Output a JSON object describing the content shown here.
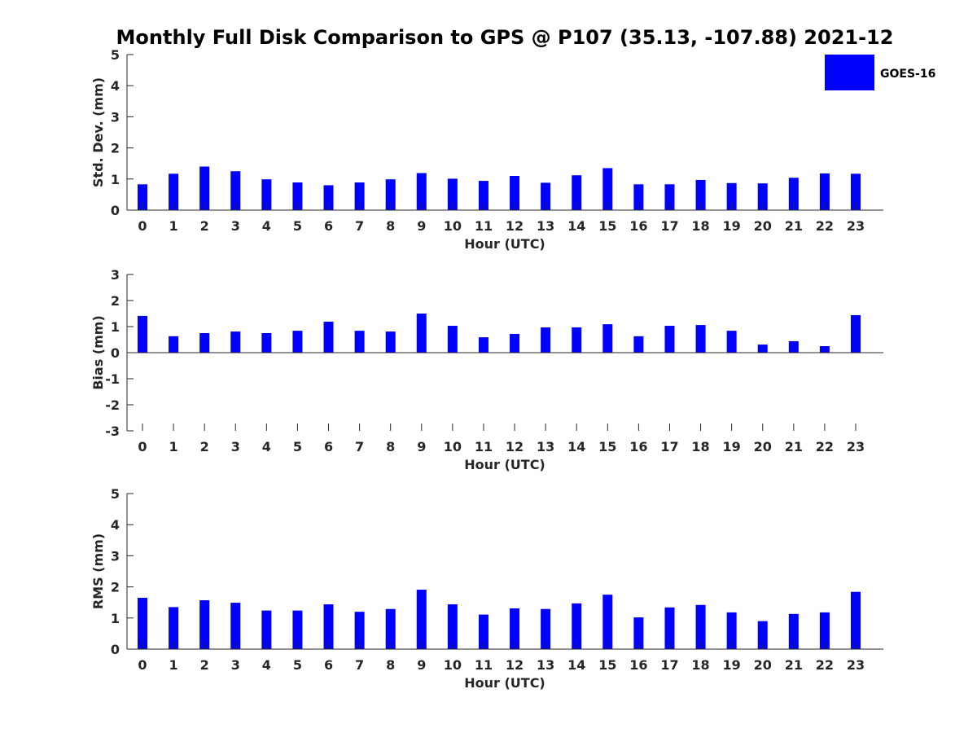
{
  "title": "Monthly Full Disk Comparison to GPS @ P107 (35.13, -107.88) 2021-12",
  "legend": {
    "label": "GOES-16",
    "color": "#0000ff"
  },
  "chart_data": [
    {
      "type": "bar",
      "xlabel": "Hour (UTC)",
      "ylabel": "Std. Dev. (mm)",
      "ylim": [
        0,
        5
      ],
      "yticks": [
        "0",
        "1",
        "2",
        "3",
        "4",
        "5"
      ],
      "categories": [
        "0",
        "1",
        "2",
        "3",
        "4",
        "5",
        "6",
        "7",
        "8",
        "9",
        "10",
        "11",
        "12",
        "13",
        "14",
        "15",
        "16",
        "17",
        "18",
        "19",
        "20",
        "21",
        "22",
        "23"
      ],
      "series": [
        {
          "name": "GOES-16",
          "color": "#0000ff",
          "values": [
            0.83,
            1.17,
            1.4,
            1.25,
            0.99,
            0.89,
            0.8,
            0.89,
            0.99,
            1.19,
            1.01,
            0.94,
            1.1,
            0.88,
            1.12,
            1.35,
            0.83,
            0.83,
            0.97,
            0.87,
            0.86,
            1.04,
            1.18,
            1.17
          ]
        }
      ],
      "legend_position": "top-right"
    },
    {
      "type": "bar",
      "xlabel": "Hour (UTC)",
      "ylabel": "Bias (mm)",
      "ylim": [
        -3,
        3
      ],
      "yticks": [
        "-3",
        "-2",
        "-1",
        "0",
        "1",
        "2",
        "3"
      ],
      "categories": [
        "0",
        "1",
        "2",
        "3",
        "4",
        "5",
        "6",
        "7",
        "8",
        "9",
        "10",
        "11",
        "12",
        "13",
        "14",
        "15",
        "16",
        "17",
        "18",
        "19",
        "20",
        "21",
        "22",
        "23"
      ],
      "series": [
        {
          "name": "GOES-16",
          "color": "#0000ff",
          "values": [
            1.41,
            0.63,
            0.75,
            0.81,
            0.75,
            0.84,
            1.19,
            0.84,
            0.81,
            1.5,
            1.03,
            0.59,
            0.72,
            0.97,
            0.97,
            1.09,
            0.63,
            1.03,
            1.06,
            0.84,
            0.31,
            0.44,
            0.25,
            1.44
          ]
        }
      ]
    },
    {
      "type": "bar",
      "xlabel": "Hour (UTC)",
      "ylabel": "RMS (mm)",
      "ylim": [
        0,
        5
      ],
      "yticks": [
        "0",
        "1",
        "2",
        "3",
        "4",
        "5"
      ],
      "categories": [
        "0",
        "1",
        "2",
        "3",
        "4",
        "5",
        "6",
        "7",
        "8",
        "9",
        "10",
        "11",
        "12",
        "13",
        "14",
        "15",
        "16",
        "17",
        "18",
        "19",
        "20",
        "21",
        "22",
        "23"
      ],
      "series": [
        {
          "name": "GOES-16",
          "color": "#0000ff",
          "values": [
            1.65,
            1.35,
            1.57,
            1.49,
            1.24,
            1.24,
            1.44,
            1.2,
            1.29,
            1.91,
            1.44,
            1.11,
            1.31,
            1.29,
            1.47,
            1.75,
            1.02,
            1.34,
            1.42,
            1.18,
            0.9,
            1.13,
            1.18,
            1.84
          ]
        }
      ]
    }
  ]
}
